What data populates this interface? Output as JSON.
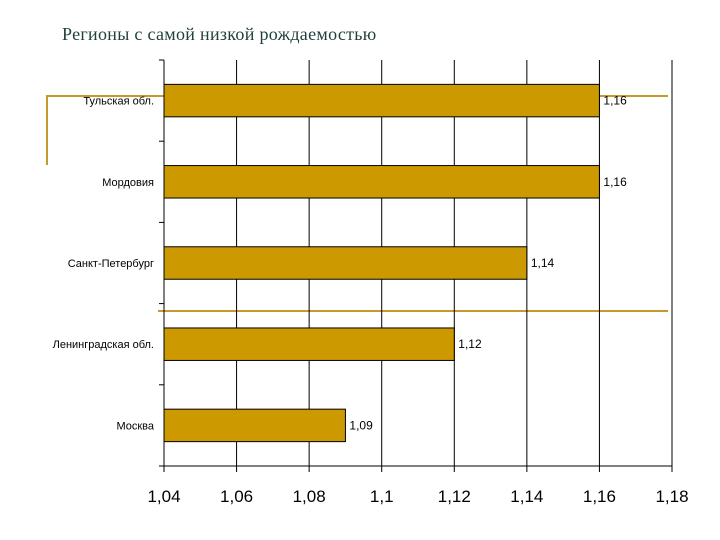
{
  "slide": {
    "title": "Регионы с самой низкой рождаемостью",
    "accent_color": "#c49a2a"
  },
  "chart_data": {
    "type": "bar",
    "orientation": "horizontal",
    "title": "",
    "xlabel": "",
    "ylabel": "",
    "categories": [
      "Тульская обл.",
      "Мордовия",
      "Санкт-Петербург",
      "Ленинградская обл.",
      "Москва"
    ],
    "values": [
      1.16,
      1.16,
      1.14,
      1.12,
      1.09
    ],
    "value_labels": [
      "1,16",
      "1,16",
      "1,14",
      "1,12",
      "1,09"
    ],
    "xlim": [
      1.04,
      1.18
    ],
    "ticks": [
      1.04,
      1.06,
      1.08,
      1.1,
      1.12,
      1.14,
      1.16,
      1.18
    ],
    "tick_labels": [
      "1,04",
      "1,06",
      "1,08",
      "1,1",
      "1,12",
      "1,14",
      "1,16",
      "1,18"
    ],
    "grid": true,
    "bar_color": "#cc9900"
  }
}
